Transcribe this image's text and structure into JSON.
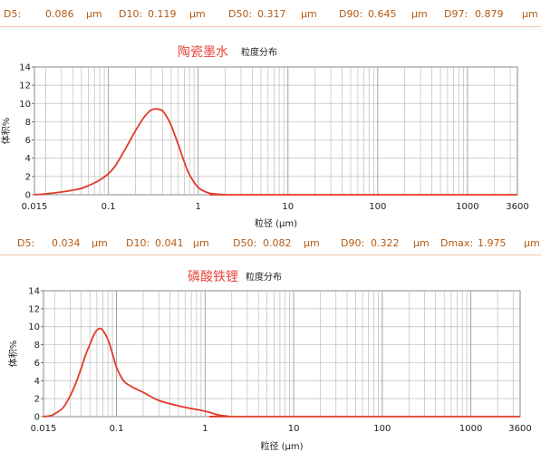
{
  "stats_top": {
    "d5_label": "D5:",
    "d5_value": "0.086",
    "d10_label": "D10:",
    "d10_value": "0.119",
    "d50_label": "D50:",
    "d50_value": "0.317",
    "d90_label": "D90:",
    "d90_value": "0.645",
    "d97_label": "D97:",
    "d97_value": "0.879",
    "unit": "μm"
  },
  "stats_bottom": {
    "d5_label": "D5:",
    "d5_value": "0.034",
    "d10_label": "D10:",
    "d10_value": "0.041",
    "d50_label": "D50:",
    "d50_value": "0.082",
    "d90_label": "D90:",
    "d90_value": "0.322",
    "dmax_label": "Dmax:",
    "dmax_value": "1.975",
    "unit": "μm"
  },
  "colors": {
    "curve": "#e23a2a",
    "title": "#e8463a",
    "stats": "#b55a10",
    "grid": "#bdbdbd"
  },
  "chart_data": [
    {
      "type": "line",
      "title": "陶瓷墨水",
      "subtitle": "粒度分布",
      "xlabel": "粒径 (μm)",
      "ylabel": "体积%",
      "xscale": "log",
      "xlim": [
        0.015,
        3600
      ],
      "ylim": [
        0,
        14
      ],
      "xticks": [
        "0.015",
        "0.1",
        "1",
        "10",
        "100",
        "1000",
        "3600"
      ],
      "yticks": [
        "0",
        "2",
        "4",
        "6",
        "8",
        "10",
        "12",
        "14"
      ],
      "grid": true,
      "series": [
        {
          "x": [
            0.015,
            0.02,
            0.03,
            0.04,
            0.05,
            0.06,
            0.07,
            0.08,
            0.1,
            0.12,
            0.15,
            0.2,
            0.25,
            0.3,
            0.35,
            0.4,
            0.45,
            0.5,
            0.6,
            0.7,
            0.8,
            1.0,
            1.3,
            1.7,
            2.0,
            2.5,
            3600
          ],
          "y": [
            0,
            0.1,
            0.3,
            0.5,
            0.7,
            1.0,
            1.3,
            1.6,
            2.3,
            3.2,
            4.8,
            7.0,
            8.5,
            9.3,
            9.4,
            9.2,
            8.5,
            7.6,
            5.5,
            3.6,
            2.2,
            0.8,
            0.2,
            0.05,
            0,
            0,
            0
          ]
        }
      ]
    },
    {
      "type": "line",
      "title": "磷酸铁锂",
      "subtitle": "粒度分布",
      "xlabel": "粒径 (μm)",
      "ylabel": "体积%",
      "xscale": "log",
      "xlim": [
        0.015,
        3600
      ],
      "ylim": [
        0,
        14
      ],
      "xticks": [
        "0.015",
        "0.1",
        "1",
        "10",
        "100",
        "1000",
        "3600"
      ],
      "yticks": [
        "0",
        "2",
        "4",
        "6",
        "8",
        "10",
        "12",
        "14"
      ],
      "grid": true,
      "series": [
        {
          "x": [
            0.015,
            0.018,
            0.02,
            0.025,
            0.03,
            0.035,
            0.04,
            0.045,
            0.05,
            0.055,
            0.06,
            0.065,
            0.07,
            0.08,
            0.09,
            0.1,
            0.12,
            0.15,
            0.2,
            0.3,
            0.5,
            0.7,
            0.9,
            1.1,
            1.4,
            1.8,
            2.0,
            3600
          ],
          "y": [
            0,
            0.1,
            0.3,
            1.0,
            2.3,
            3.8,
            5.4,
            6.9,
            8.0,
            9.0,
            9.6,
            9.8,
            9.6,
            8.6,
            7.0,
            5.5,
            4.0,
            3.3,
            2.7,
            1.8,
            1.2,
            0.9,
            0.7,
            0.5,
            0.2,
            0.05,
            0,
            0
          ]
        }
      ]
    }
  ]
}
